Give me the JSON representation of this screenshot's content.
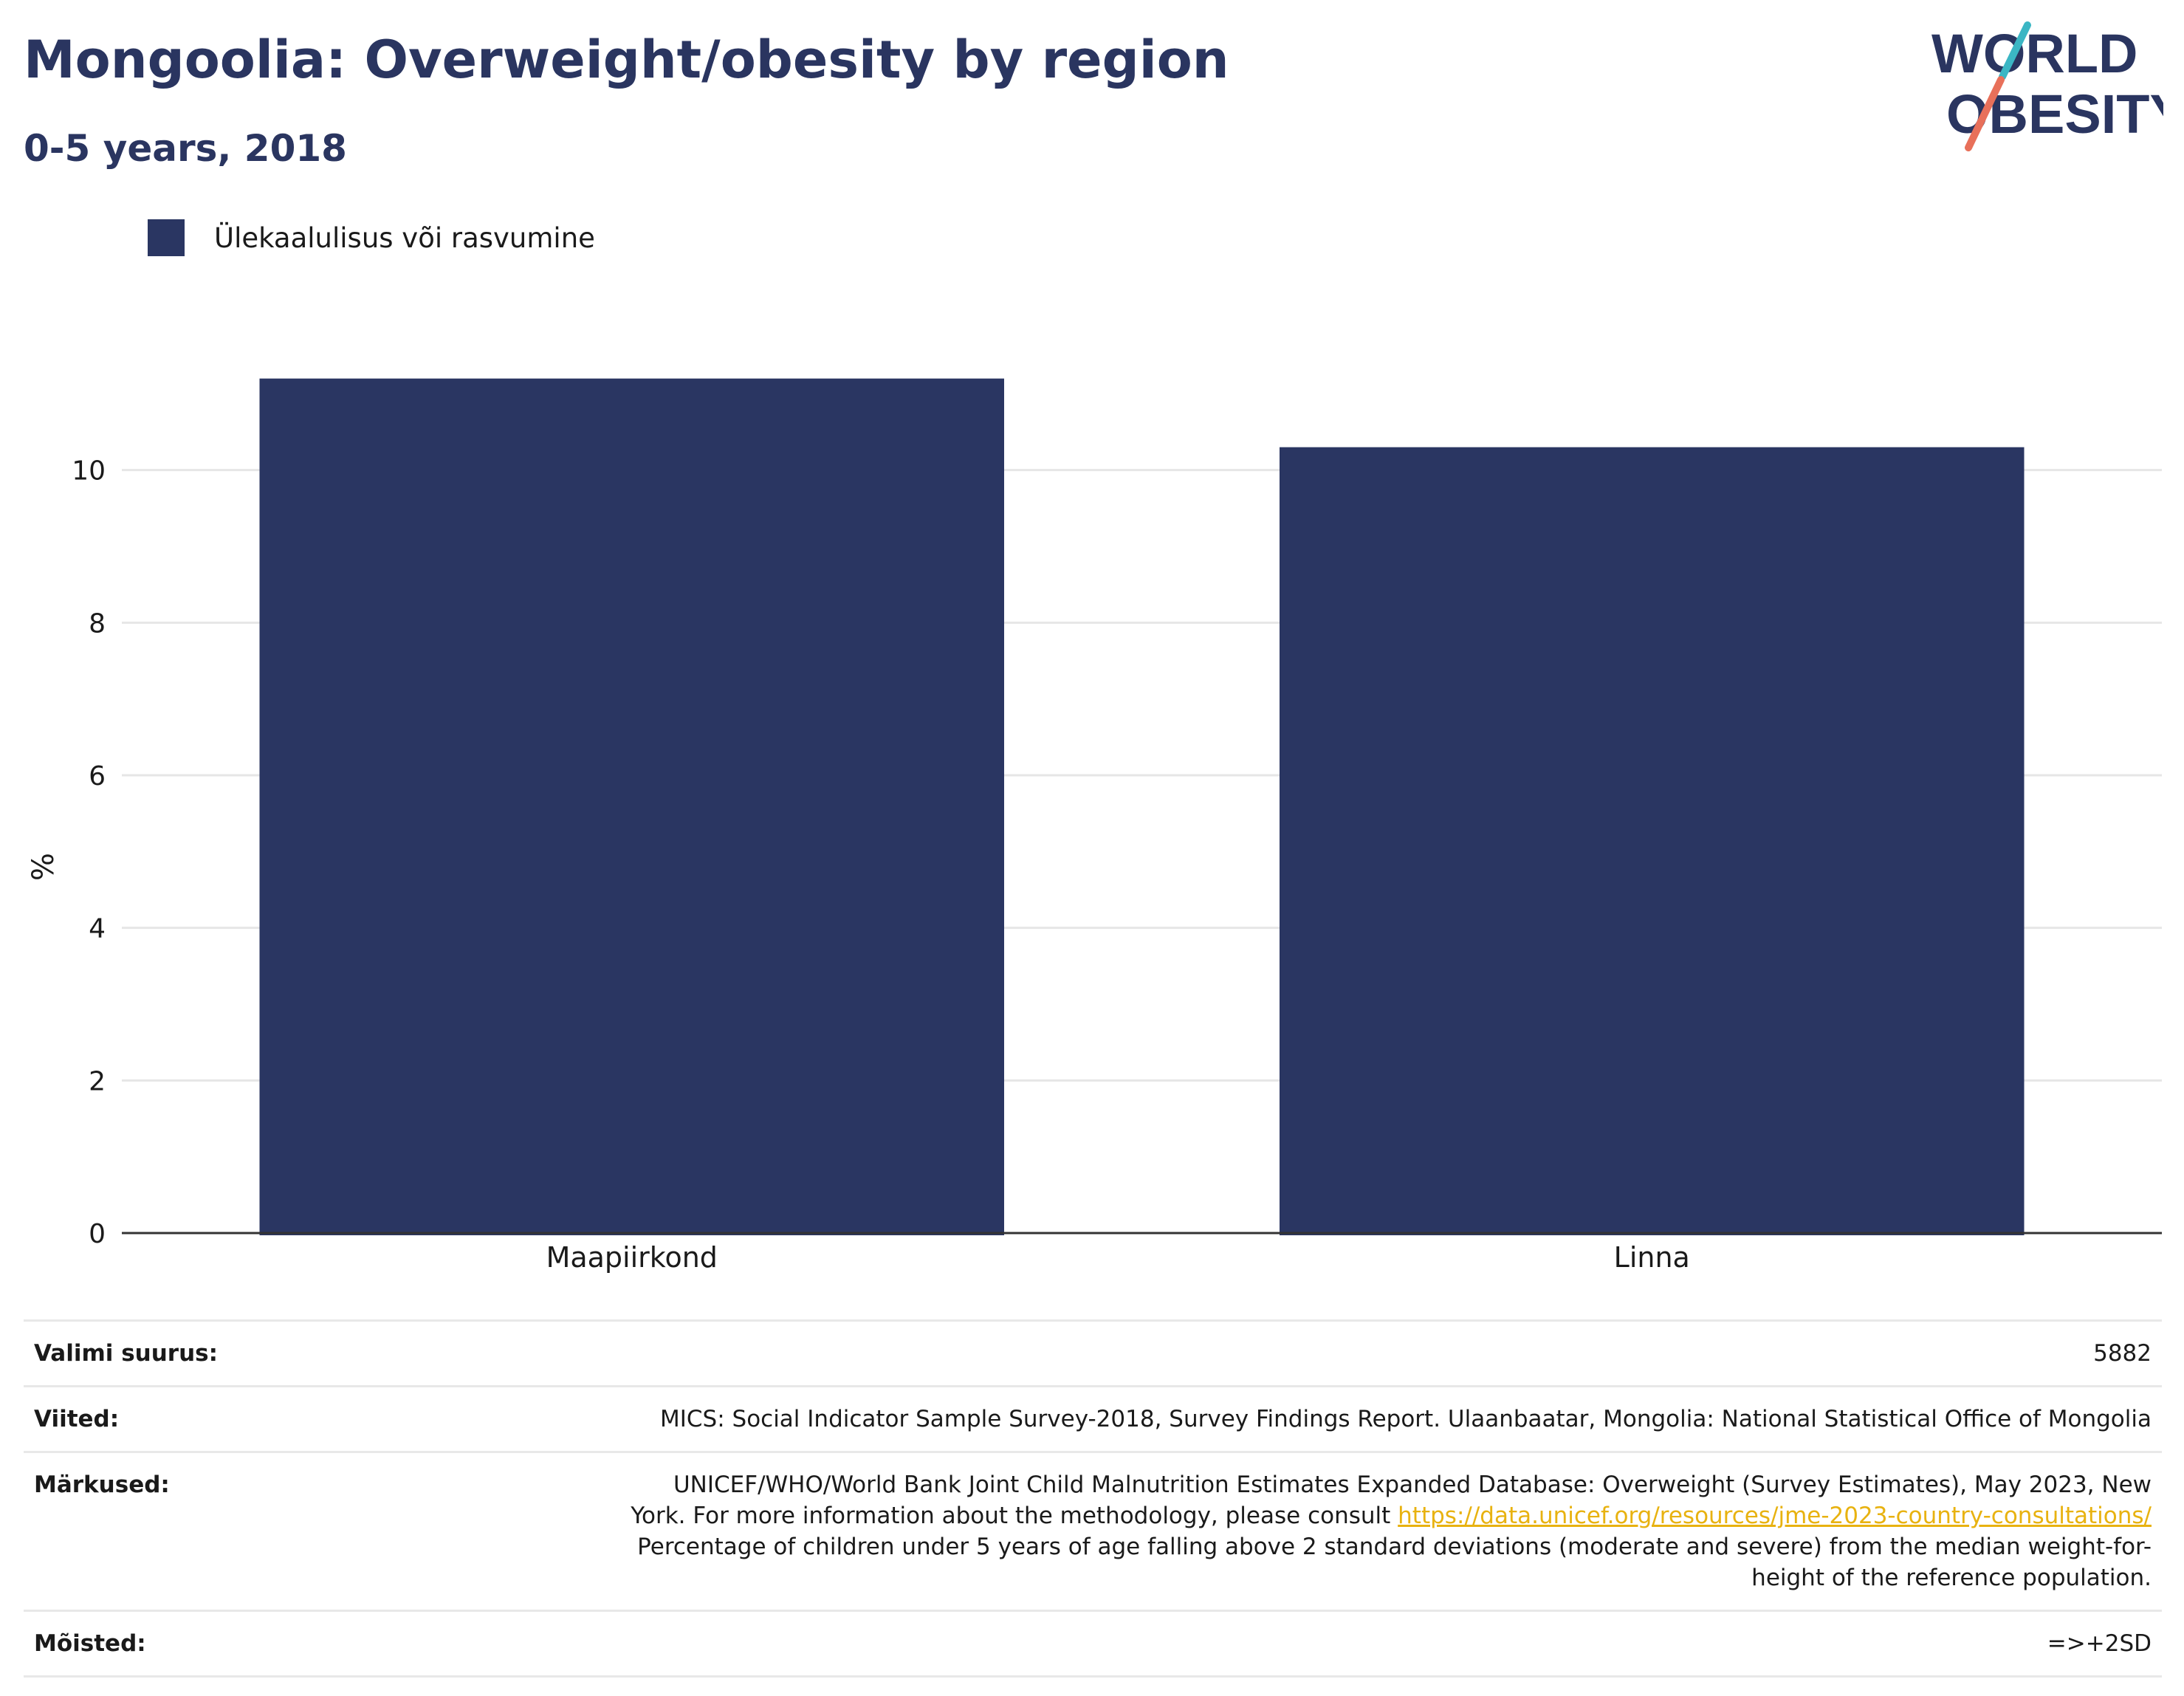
{
  "header": {
    "title": "Mongoolia: Overweight/obesity by region",
    "subtitle": "0-5 years, 2018"
  },
  "logo": {
    "line1": "WORLD",
    "line2": "OBESITY",
    "colors": {
      "text": "#2a3560",
      "slash_top": "#3bb6c4",
      "slash_bottom": "#e8705a"
    }
  },
  "legend": {
    "label": "Ülekaalulisus või rasvumine",
    "color": "#2a3662"
  },
  "chart_data": {
    "type": "bar",
    "categories": [
      "Maapiirkond",
      "Linna"
    ],
    "series": [
      {
        "name": "Ülekaalulisus või rasvumine",
        "values": [
          11.2,
          10.3
        ],
        "color": "#2a3662"
      }
    ],
    "ylabel": "%",
    "xlabel": "",
    "ylim": [
      0,
      12
    ],
    "yticks": [
      0,
      2,
      4,
      6,
      8,
      10
    ],
    "grid": true,
    "legend_position": "top-left"
  },
  "table": {
    "sample_size": {
      "label": "Valimi suurus:",
      "value": "5882"
    },
    "references": {
      "label": "Viited:",
      "value": "MICS: Social Indicator Sample Survey-2018, Survey Findings Report. Ulaanbaatar, Mongolia: National Statistical Office of Mongolia"
    },
    "notes": {
      "label": "Märkused:",
      "text_before_link": "UNICEF/WHO/World Bank Joint Child Malnutrition Estimates Expanded Database: Overweight (Survey Estimates), May 2023, New York. For more information about the methodology, please consult ",
      "link": "https://data.unicef.org/resources/jme-2023-country-consultations/",
      "text_after_link": " Percentage of children under 5 years of age falling above 2 standard deviations (moderate and severe) from the median weight-for-height of the reference population.",
      "link_color": "#e8b210"
    },
    "definitions": {
      "label": "Mõisted:",
      "value": "=>+2SD"
    }
  }
}
